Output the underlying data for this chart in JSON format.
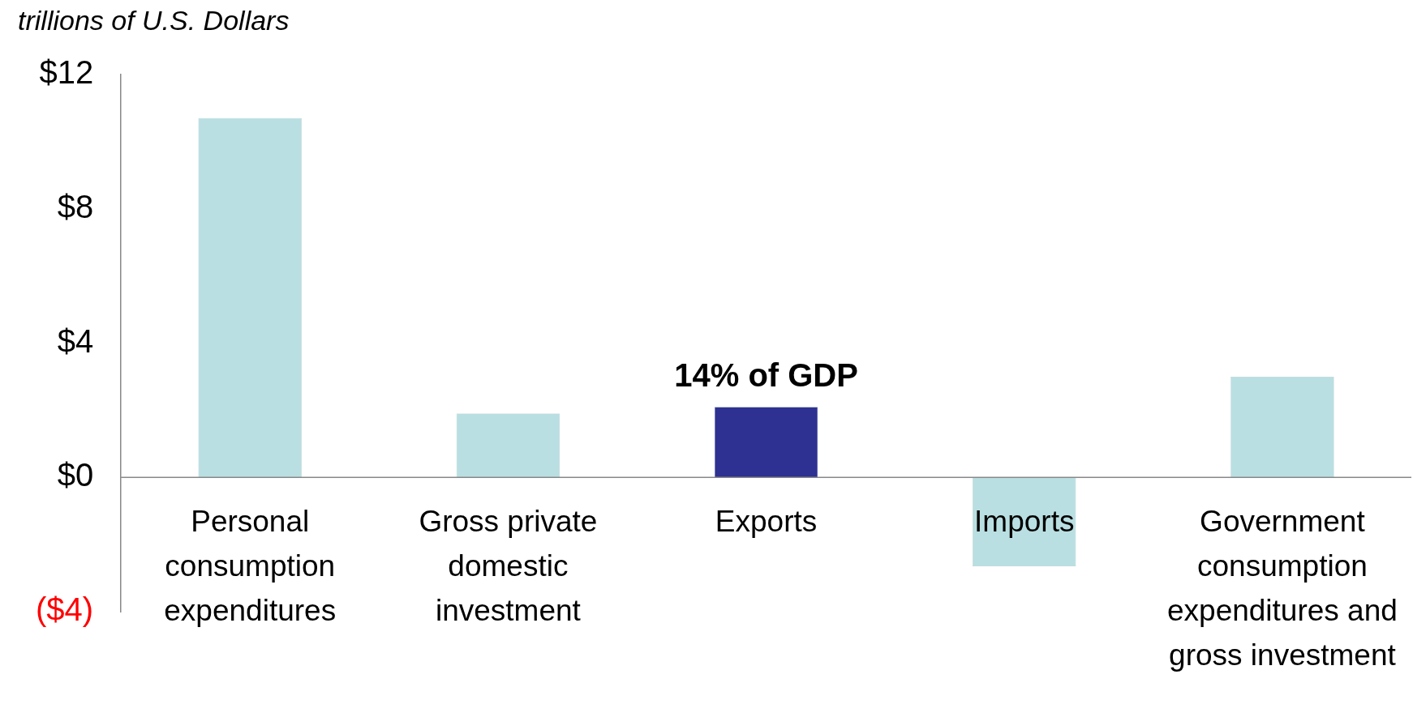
{
  "chart_data": {
    "type": "bar",
    "ylabel": "trillions of U.S. Dollars",
    "categories": [
      "Personal consumption expenditures",
      "Gross private domestic investment",
      "Exports",
      "Imports",
      "Government consumption expenditures and gross investment"
    ],
    "values": [
      10.7,
      1.9,
      2.1,
      -2.65,
      3.0
    ],
    "colors": [
      "#b9dfe2",
      "#b9dfe2",
      "#2e3191",
      "#b9dfe2",
      "#b9dfe2"
    ],
    "ylim": [
      -4,
      12
    ],
    "yticks": [
      {
        "value": 12,
        "label": "$12"
      },
      {
        "value": 8,
        "label": "$8"
      },
      {
        "value": 4,
        "label": "$4"
      },
      {
        "value": 0,
        "label": "$0"
      },
      {
        "value": -4,
        "label": "($4)"
      }
    ],
    "annotations": [
      {
        "text": "14% of GDP",
        "x": "Exports",
        "y": 2.1
      }
    ],
    "grid": false,
    "legend": false
  }
}
